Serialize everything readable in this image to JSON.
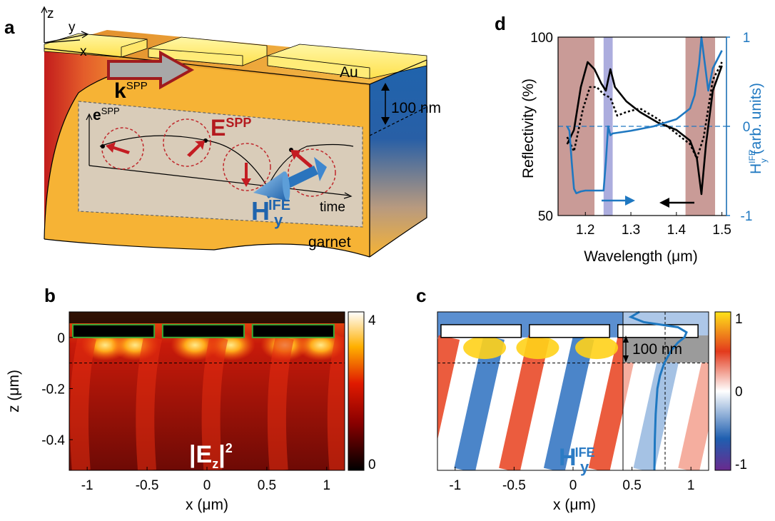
{
  "panel_a": {
    "label": "a",
    "axes": {
      "z": "z",
      "y": "y",
      "x": "x"
    },
    "k_main": "k",
    "k_sup": "SPP",
    "e_main": "e",
    "e_sup": "SPP",
    "E_main": "E",
    "E_sup": "SPP",
    "H_main": "H",
    "H_sup": "IFE",
    "H_sub": "y",
    "au": "Au",
    "thickness": "100 nm",
    "time": "time",
    "garnet": "garnet",
    "colors": {
      "gold": "#f6b335",
      "metal": "#ffe667",
      "garnet_blue": "#1f64ad",
      "spp_red": "#b41a1e",
      "arrow_blue": "#3a86c8"
    }
  },
  "panel_b": {
    "label": "b",
    "ylabel": "z (μm)",
    "xlabel": "x (μm)",
    "field_main": "|E",
    "field_sub": "z",
    "field_tail": "|",
    "field_sup": "2",
    "cmap": "hot"
  },
  "panel_c": {
    "label": "c",
    "xlabel": "x (μm)",
    "thickness": "100 nm",
    "field_main": "H",
    "field_sub": "y",
    "field_sup": "IFE",
    "cmap": "diverging"
  },
  "panel_d": {
    "label": "d",
    "xlabel": "Wavelength (μm)",
    "ylabel_left": "Reflectivity (%)",
    "ylabel_right_main": "H",
    "ylabel_right_sub": "y",
    "ylabel_right_sup": "IFE",
    "ylabel_right_tail": " (arb. units)"
  },
  "chart_data": [
    {
      "type": "heatmap",
      "panel": "b",
      "quantity": "|Ez|^2",
      "x_ticks": [
        "-1",
        "-0.5",
        "0",
        "0.5",
        "1"
      ],
      "x_tick_values": [
        -1,
        -0.5,
        0,
        0.5,
        1
      ],
      "y_ticks": [
        "0",
        "-0.2",
        "-0.4"
      ],
      "y_tick_values": [
        0,
        -0.2,
        -0.4
      ],
      "xlim": [
        -1.15,
        1.15
      ],
      "ylim": [
        -0.52,
        0.1
      ],
      "colorbar_ticks": [
        "0",
        "4"
      ],
      "colorbar_range": [
        0,
        4
      ],
      "gratings": [
        [
          -1.12,
          -0.44
        ],
        [
          -0.37,
          0.31
        ],
        [
          0.38,
          1.06
        ]
      ],
      "dashed_z": -0.1
    },
    {
      "type": "heatmap",
      "panel": "c",
      "quantity": "Hy IFE",
      "x_ticks": [
        "-1",
        "-0.5",
        "0",
        "0.5",
        "1"
      ],
      "x_tick_values": [
        -1,
        -0.5,
        0,
        0.5,
        1
      ],
      "xlim": [
        -1.15,
        1.15
      ],
      "ylim": [
        -0.52,
        0.1
      ],
      "colorbar_ticks": [
        "1",
        "0",
        "-1"
      ],
      "colorbar_range": [
        -1,
        1
      ],
      "gratings": [
        [
          -1.12,
          -0.44
        ],
        [
          -0.37,
          0.31
        ],
        [
          0.38,
          1.06
        ]
      ],
      "dashed_z": -0.1,
      "profile": {
        "z": [
          0.1,
          0.08,
          0.06,
          0.04,
          0.02,
          0.0,
          -0.02,
          -0.05,
          -0.1,
          -0.15,
          -0.2,
          -0.3,
          -0.4,
          -0.52
        ],
        "value": [
          -0.6,
          -0.8,
          -0.5,
          0.3,
          0.5,
          0.45,
          0.3,
          0.15,
          -0.02,
          -0.12,
          -0.18,
          -0.22,
          -0.24,
          -0.25
        ]
      }
    },
    {
      "type": "line",
      "panel": "d",
      "xlabel": "Wavelength (μm)",
      "ylabel": "Reflectivity (%)",
      "xlim": [
        1.14,
        1.51
      ],
      "ylim": [
        50,
        100
      ],
      "x_ticks": [
        "1.2",
        "1.3",
        "1.4",
        "1.5"
      ],
      "x_tick_values": [
        1.2,
        1.3,
        1.4,
        1.5
      ],
      "y_ticks": [
        "50",
        "100"
      ],
      "y_tick_values": [
        50,
        100
      ],
      "y2_ticks": [
        "1",
        "0",
        "-1"
      ],
      "y2_tick_values": [
        1,
        0,
        -1
      ],
      "y2lim": [
        -1,
        1
      ],
      "shaded": [
        {
          "from": 1.14,
          "to": 1.22,
          "color": "#c08a85"
        },
        {
          "from": 1.24,
          "to": 1.26,
          "color": "#9d9fd8"
        },
        {
          "from": 1.42,
          "to": 1.485,
          "color": "#c08a85"
        }
      ],
      "series": [
        {
          "axis": "left",
          "style": "solid",
          "color": "#000000",
          "x": [
            1.16,
            1.175,
            1.19,
            1.205,
            1.22,
            1.235,
            1.245,
            1.255,
            1.265,
            1.29,
            1.32,
            1.36,
            1.4,
            1.43,
            1.445,
            1.455,
            1.465,
            1.48,
            1.5
          ],
          "y": [
            70,
            74,
            86,
            93,
            91,
            87,
            85,
            91,
            86,
            82,
            79,
            76,
            74,
            71,
            66,
            56,
            70,
            85,
            92
          ]
        },
        {
          "axis": "left",
          "style": "dotted",
          "color": "#000000",
          "x": [
            1.16,
            1.175,
            1.195,
            1.21,
            1.225,
            1.24,
            1.255,
            1.27,
            1.29,
            1.32,
            1.36,
            1.4,
            1.43,
            1.445,
            1.46,
            1.48,
            1.5
          ],
          "y": [
            72,
            68,
            80,
            86,
            86,
            84,
            83,
            78,
            79,
            80,
            77,
            73,
            70,
            66,
            72,
            88,
            93
          ]
        },
        {
          "axis": "right",
          "style": "solid",
          "color": "#1f78c1",
          "x": [
            1.16,
            1.165,
            1.17,
            1.175,
            1.18,
            1.19,
            1.2,
            1.21,
            1.22,
            1.23,
            1.24,
            1.245,
            1.25,
            1.255,
            1.26,
            1.3,
            1.35,
            1.4,
            1.43,
            1.44,
            1.45,
            1.455,
            1.46,
            1.47,
            1.48,
            1.5
          ],
          "y": [
            0,
            -0.05,
            -0.4,
            -0.7,
            -0.75,
            -0.73,
            -0.72,
            -0.72,
            -0.72,
            -0.72,
            -0.72,
            -0.4,
            0.0,
            -0.1,
            -0.08,
            -0.05,
            0.0,
            0.08,
            0.2,
            0.35,
            0.7,
            1.0,
            0.8,
            0.4,
            0.65,
            0.85
          ]
        }
      ],
      "annotations": [
        {
          "type": "arrow",
          "direction": "right",
          "axis": "right",
          "color": "#1f78c1"
        },
        {
          "type": "arrow",
          "direction": "left",
          "axis": "left",
          "color": "#000000"
        }
      ]
    }
  ]
}
